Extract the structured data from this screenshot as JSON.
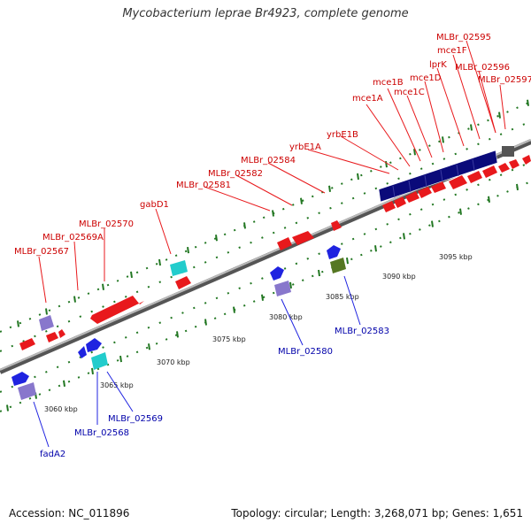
{
  "title": "Mycobacterium leprae Br4923, complete genome",
  "footer": {
    "accession": "Accession: NC_011896",
    "summary": "Topology: circular; Length: 3,268,071 bp; Genes: 1,651"
  },
  "scale": {
    "ticks": [
      "3060 kbp",
      "3065 kbp",
      "3070 kbp",
      "3075 kbp",
      "3080 kbp",
      "3085 kbp",
      "3090 kbp",
      "3095 kbp"
    ]
  },
  "labels": {
    "top": [
      "MLBr_02567",
      "MLBr_02569A",
      "MLBr_02570",
      "gabD1",
      "MLBr_02581",
      "MLBr_02582",
      "MLBr_02584",
      "yrbE1A",
      "yrbE1B",
      "mce1A",
      "mce1B",
      "mce1C",
      "mce1D",
      "lprK",
      "mce1F",
      "MLBr_02595",
      "MLBr_02596",
      "MLBr_02597"
    ],
    "bottom": [
      "fadA2",
      "MLBr_02568",
      "MLBr_02569",
      "MLBr_02580",
      "MLBr_02583"
    ]
  },
  "colors": {
    "forward_gene": "#e8191c",
    "reverse_gene": "#1f23e0",
    "label_forward": "#cc0000",
    "label_reverse": "#0000aa",
    "mce_operon": "#0a0a7a",
    "cyan_gene": "#22cccc",
    "lavender_gene": "#8877cc",
    "olive_gene": "#557722",
    "gray_gene": "#555555",
    "backbone": "#888888",
    "tick": "#227722"
  }
}
